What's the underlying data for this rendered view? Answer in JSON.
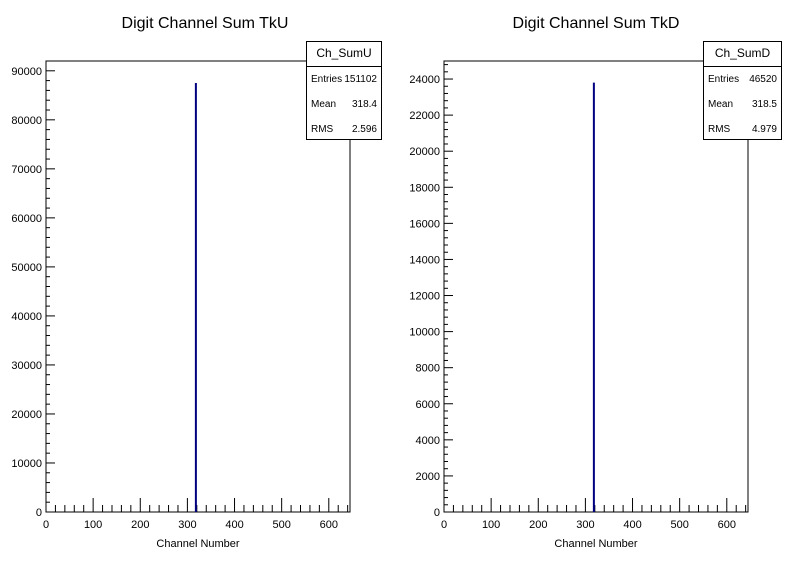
{
  "chart_data": [
    {
      "type": "bar",
      "title": "Digit Channel Sum TkU",
      "xlabel": "Channel Number",
      "ylabel": "",
      "xlim": [
        0,
        645
      ],
      "ylim": [
        0,
        92000
      ],
      "x_ticks": [
        0,
        100,
        200,
        300,
        400,
        500,
        600
      ],
      "y_ticks": [
        0,
        10000,
        20000,
        30000,
        40000,
        50000,
        60000,
        70000,
        80000,
        90000
      ],
      "series": [
        {
          "x": [
            318
          ],
          "values": [
            87500
          ]
        }
      ],
      "color": "#000080",
      "stats": {
        "name": "Ch_SumU",
        "rows": [
          {
            "label": "Entries",
            "value": "151102"
          },
          {
            "label": "Mean",
            "value": "318.4"
          },
          {
            "label": "RMS",
            "value": "2.596"
          }
        ]
      }
    },
    {
      "type": "bar",
      "title": "Digit Channel Sum TkD",
      "xlabel": "Channel Number",
      "ylabel": "",
      "xlim": [
        0,
        645
      ],
      "ylim": [
        0,
        25000
      ],
      "x_ticks": [
        0,
        100,
        200,
        300,
        400,
        500,
        600
      ],
      "y_ticks": [
        0,
        2000,
        4000,
        6000,
        8000,
        10000,
        12000,
        14000,
        16000,
        18000,
        20000,
        22000,
        24000
      ],
      "series": [
        {
          "x": [
            318
          ],
          "values": [
            23800
          ]
        }
      ],
      "color": "#000080",
      "stats": {
        "name": "Ch_SumD",
        "rows": [
          {
            "label": "Entries",
            "value": "46520"
          },
          {
            "label": "Mean",
            "value": "318.5"
          },
          {
            "label": "RMS",
            "value": "4.979"
          }
        ]
      }
    }
  ]
}
